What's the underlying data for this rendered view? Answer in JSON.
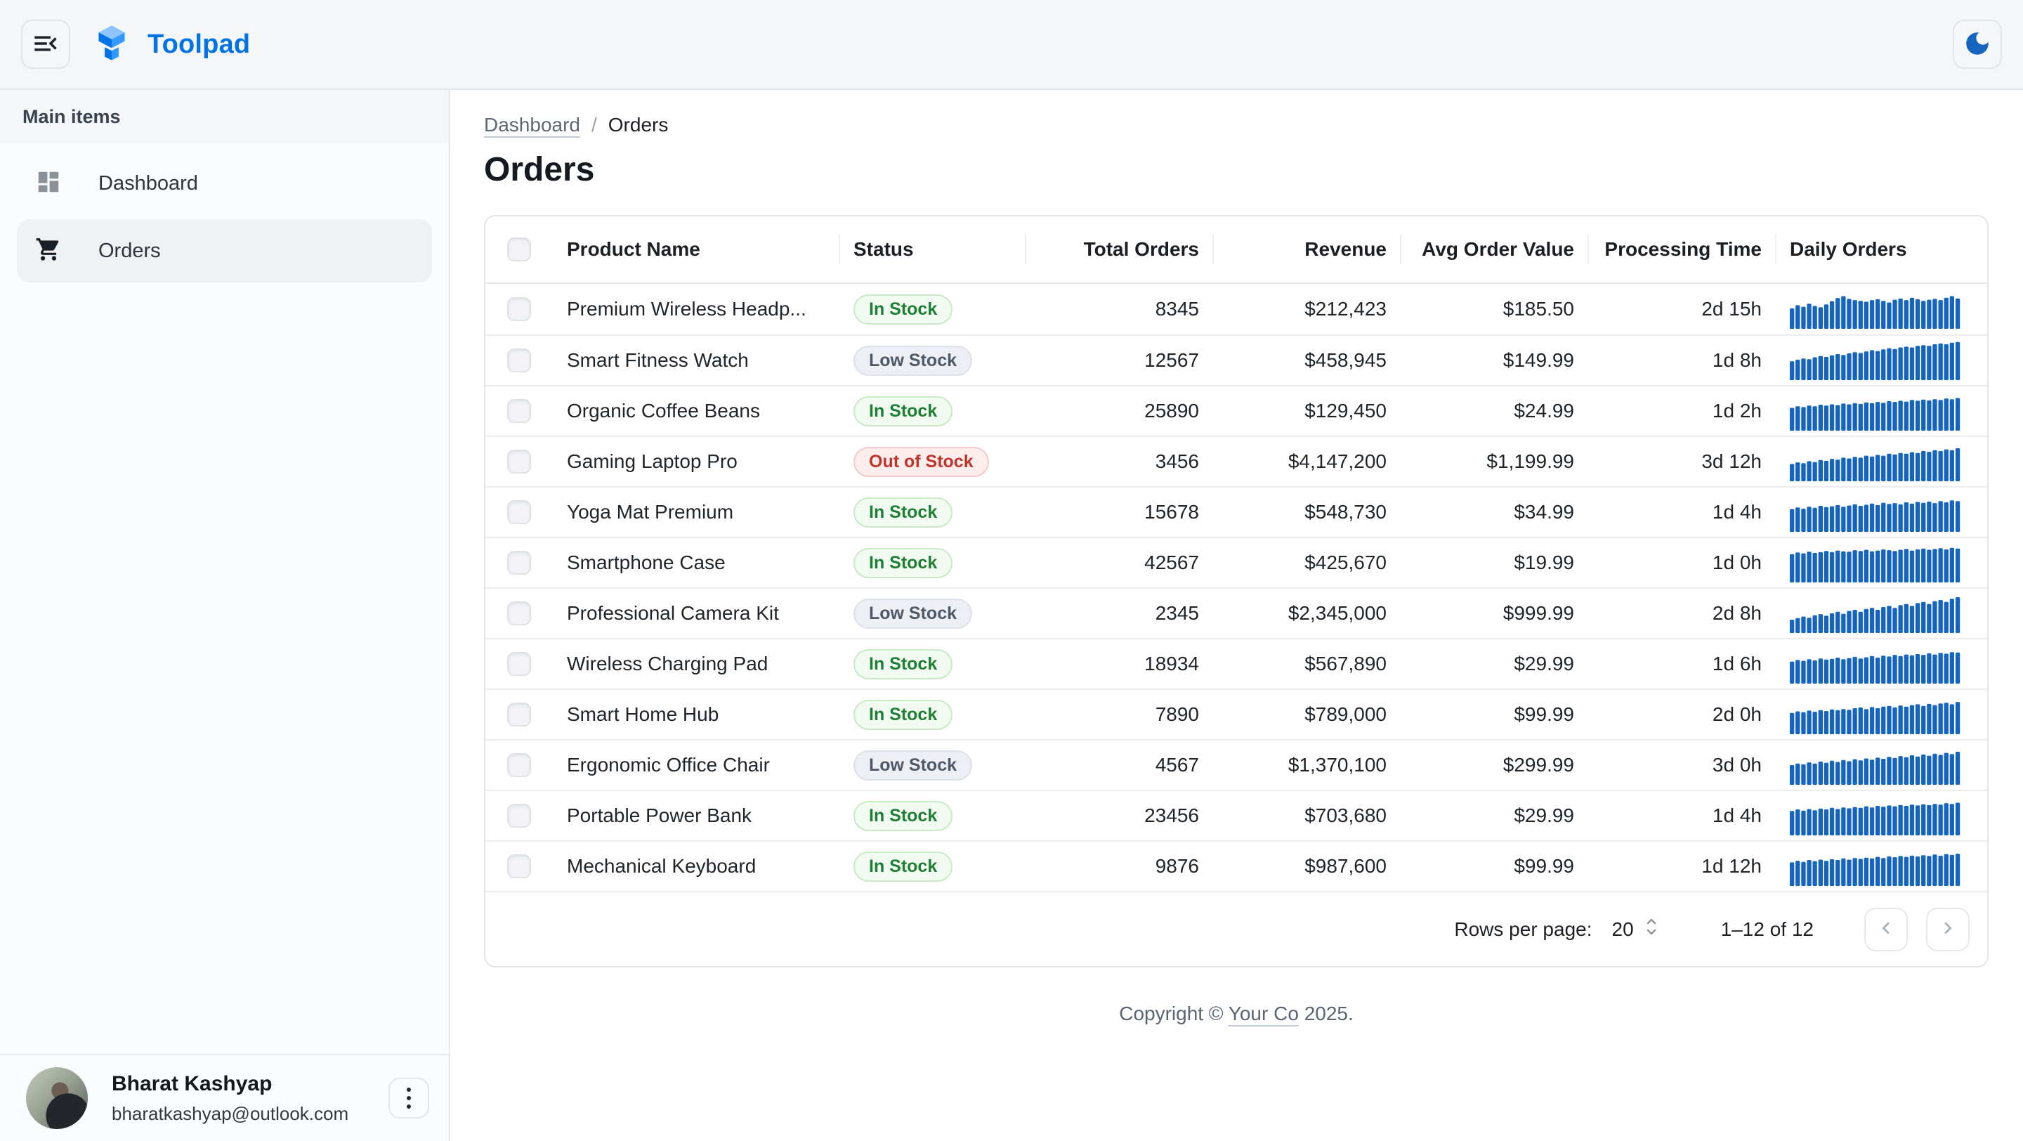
{
  "appbar": {
    "brand": "Toolpad"
  },
  "sidebar": {
    "section_label": "Main items",
    "items": [
      {
        "label": "Dashboard",
        "icon": "dashboard-icon",
        "selected": false
      },
      {
        "label": "Orders",
        "icon": "shopping-cart-icon",
        "selected": true
      }
    ],
    "user": {
      "name": "Bharat Kashyap",
      "email": "bharatkashyap@outlook.com"
    }
  },
  "breadcrumb": {
    "parent": "Dashboard",
    "separator": "/",
    "current": "Orders"
  },
  "page": {
    "title": "Orders"
  },
  "table": {
    "columns": [
      {
        "label": "Product Name",
        "align": "left"
      },
      {
        "label": "Status",
        "align": "left"
      },
      {
        "label": "Total Orders",
        "align": "right"
      },
      {
        "label": "Revenue",
        "align": "right"
      },
      {
        "label": "Avg Order Value",
        "align": "right"
      },
      {
        "label": "Processing Time",
        "align": "right"
      },
      {
        "label": "Daily Orders",
        "align": "left"
      }
    ],
    "status_variants": {
      "In Stock": {
        "color": "#1e7e34",
        "bg": "#f2fbf1",
        "border": "#c9e9c7"
      },
      "Low Stock": {
        "color": "#4f5866",
        "bg": "#edeff4",
        "border": "#dde1e9"
      },
      "Out of Stock": {
        "color": "#c0352b",
        "bg": "#fdeded",
        "border": "#f6caca"
      }
    },
    "rows": [
      {
        "product": "Premium Wireless Headp...",
        "status": "In Stock",
        "total_orders": "8345",
        "revenue": "$212,423",
        "avg_order_value": "$185.50",
        "processing_time": "2d 15h",
        "daily_orders": [
          52,
          60,
          56,
          64,
          58,
          55,
          62,
          70,
          78,
          83,
          76,
          73,
          71,
          69,
          73,
          75,
          71,
          67,
          74,
          77,
          73,
          79,
          75,
          71,
          74,
          76,
          73,
          79,
          83,
          77
        ]
      },
      {
        "product": "Smart Fitness Watch",
        "status": "Low Stock",
        "total_orders": "12567",
        "revenue": "$458,945",
        "avg_order_value": "$149.99",
        "processing_time": "1d 8h",
        "daily_orders": [
          48,
          52,
          55,
          53,
          58,
          61,
          59,
          63,
          66,
          64,
          68,
          71,
          69,
          73,
          76,
          74,
          78,
          81,
          79,
          83,
          85,
          83,
          87,
          89,
          87,
          91,
          93,
          91,
          95,
          97
        ]
      },
      {
        "product": "Organic Coffee Beans",
        "status": "In Stock",
        "total_orders": "25890",
        "revenue": "$129,450",
        "avg_order_value": "$24.99",
        "processing_time": "1d 2h",
        "daily_orders": [
          58,
          62,
          60,
          64,
          62,
          66,
          64,
          67,
          65,
          69,
          67,
          70,
          68,
          72,
          70,
          73,
          71,
          75,
          73,
          76,
          74,
          78,
          76,
          79,
          77,
          80,
          78,
          82,
          80,
          83
        ]
      },
      {
        "product": "Gaming Laptop Pro",
        "status": "Out of Stock",
        "total_orders": "3456",
        "revenue": "$4,147,200",
        "avg_order_value": "$1,199.99",
        "processing_time": "3d 12h",
        "daily_orders": [
          44,
          48,
          46,
          51,
          49,
          54,
          52,
          57,
          55,
          60,
          58,
          62,
          60,
          65,
          63,
          67,
          65,
          70,
          68,
          72,
          70,
          74,
          72,
          77,
          75,
          79,
          77,
          81,
          79,
          84
        ]
      },
      {
        "product": "Yoga Mat Premium",
        "status": "In Stock",
        "total_orders": "15678",
        "revenue": "$548,730",
        "avg_order_value": "$34.99",
        "processing_time": "1d 4h",
        "daily_orders": [
          58,
          62,
          59,
          64,
          61,
          66,
          63,
          65,
          68,
          64,
          67,
          70,
          66,
          69,
          72,
          68,
          74,
          71,
          73,
          70,
          75,
          72,
          76,
          74,
          77,
          73,
          78,
          75,
          80,
          78
        ]
      },
      {
        "product": "Smartphone Case",
        "status": "In Stock",
        "total_orders": "42567",
        "revenue": "$425,670",
        "avg_order_value": "$19.99",
        "processing_time": "1d 0h",
        "daily_orders": [
          72,
          76,
          74,
          78,
          75,
          77,
          80,
          77,
          81,
          79,
          78,
          82,
          80,
          83,
          79,
          81,
          84,
          82,
          80,
          83,
          85,
          81,
          84,
          86,
          83,
          85,
          87,
          84,
          88,
          86
        ]
      },
      {
        "product": "Professional Camera Kit",
        "status": "Low Stock",
        "total_orders": "2345",
        "revenue": "$2,345,000",
        "avg_order_value": "$999.99",
        "processing_time": "2d 8h",
        "daily_orders": [
          34,
          38,
          42,
          39,
          45,
          48,
          44,
          50,
          54,
          49,
          56,
          59,
          54,
          61,
          64,
          59,
          66,
          69,
          64,
          71,
          74,
          69,
          76,
          79,
          74,
          81,
          84,
          79,
          87,
          91
        ]
      },
      {
        "product": "Wireless Charging Pad",
        "status": "In Stock",
        "total_orders": "18934",
        "revenue": "$567,890",
        "avg_order_value": "$29.99",
        "processing_time": "1d 6h",
        "daily_orders": [
          56,
          60,
          58,
          62,
          59,
          64,
          61,
          63,
          66,
          62,
          65,
          68,
          64,
          67,
          70,
          66,
          71,
          69,
          73,
          70,
          74,
          72,
          75,
          73,
          77,
          74,
          78,
          76,
          80,
          79
        ]
      },
      {
        "product": "Smart Home Hub",
        "status": "In Stock",
        "total_orders": "7890",
        "revenue": "$789,000",
        "avg_order_value": "$99.99",
        "processing_time": "2d 0h",
        "daily_orders": [
          54,
          58,
          56,
          60,
          57,
          61,
          59,
          63,
          61,
          64,
          62,
          66,
          68,
          64,
          69,
          66,
          70,
          72,
          68,
          73,
          70,
          74,
          76,
          72,
          77,
          74,
          78,
          80,
          76,
          82
        ]
      },
      {
        "product": "Ergonomic Office Chair",
        "status": "Low Stock",
        "total_orders": "4567",
        "revenue": "$1,370,100",
        "avg_order_value": "$299.99",
        "processing_time": "3d 0h",
        "daily_orders": [
          50,
          54,
          52,
          57,
          54,
          59,
          56,
          61,
          58,
          63,
          60,
          65,
          62,
          67,
          64,
          69,
          66,
          71,
          68,
          73,
          70,
          75,
          72,
          77,
          74,
          79,
          76,
          81,
          78,
          84
        ]
      },
      {
        "product": "Portable Power Bank",
        "status": "In Stock",
        "total_orders": "23456",
        "revenue": "$703,680",
        "avg_order_value": "$29.99",
        "processing_time": "1d 4h",
        "daily_orders": [
          62,
          66,
          63,
          67,
          64,
          68,
          66,
          70,
          67,
          71,
          69,
          72,
          70,
          74,
          71,
          75,
          73,
          76,
          74,
          77,
          75,
          78,
          76,
          79,
          77,
          80,
          78,
          82,
          80,
          83
        ]
      },
      {
        "product": "Mechanical Keyboard",
        "status": "In Stock",
        "total_orders": "9876",
        "revenue": "$987,600",
        "avg_order_value": "$99.99",
        "processing_time": "1d 12h",
        "daily_orders": [
          60,
          64,
          61,
          66,
          63,
          67,
          64,
          68,
          66,
          70,
          67,
          71,
          69,
          72,
          70,
          74,
          71,
          75,
          73,
          76,
          74,
          77,
          75,
          78,
          76,
          80,
          77,
          81,
          79,
          82
        ]
      }
    ]
  },
  "pagination": {
    "rows_per_page_label": "Rows per page:",
    "rows_per_page_value": "20",
    "range_label": "1–12 of 12"
  },
  "footer": {
    "prefix": "Copyright ©",
    "link": "Your Co",
    "suffix": "2025."
  },
  "colors": {
    "brand": "#0073e6",
    "sparkline": "#1565c0",
    "appbar_bg": "#f5f6f8",
    "selected_item_bg": "#eff1f4",
    "moon_icon": "#1565c0"
  }
}
